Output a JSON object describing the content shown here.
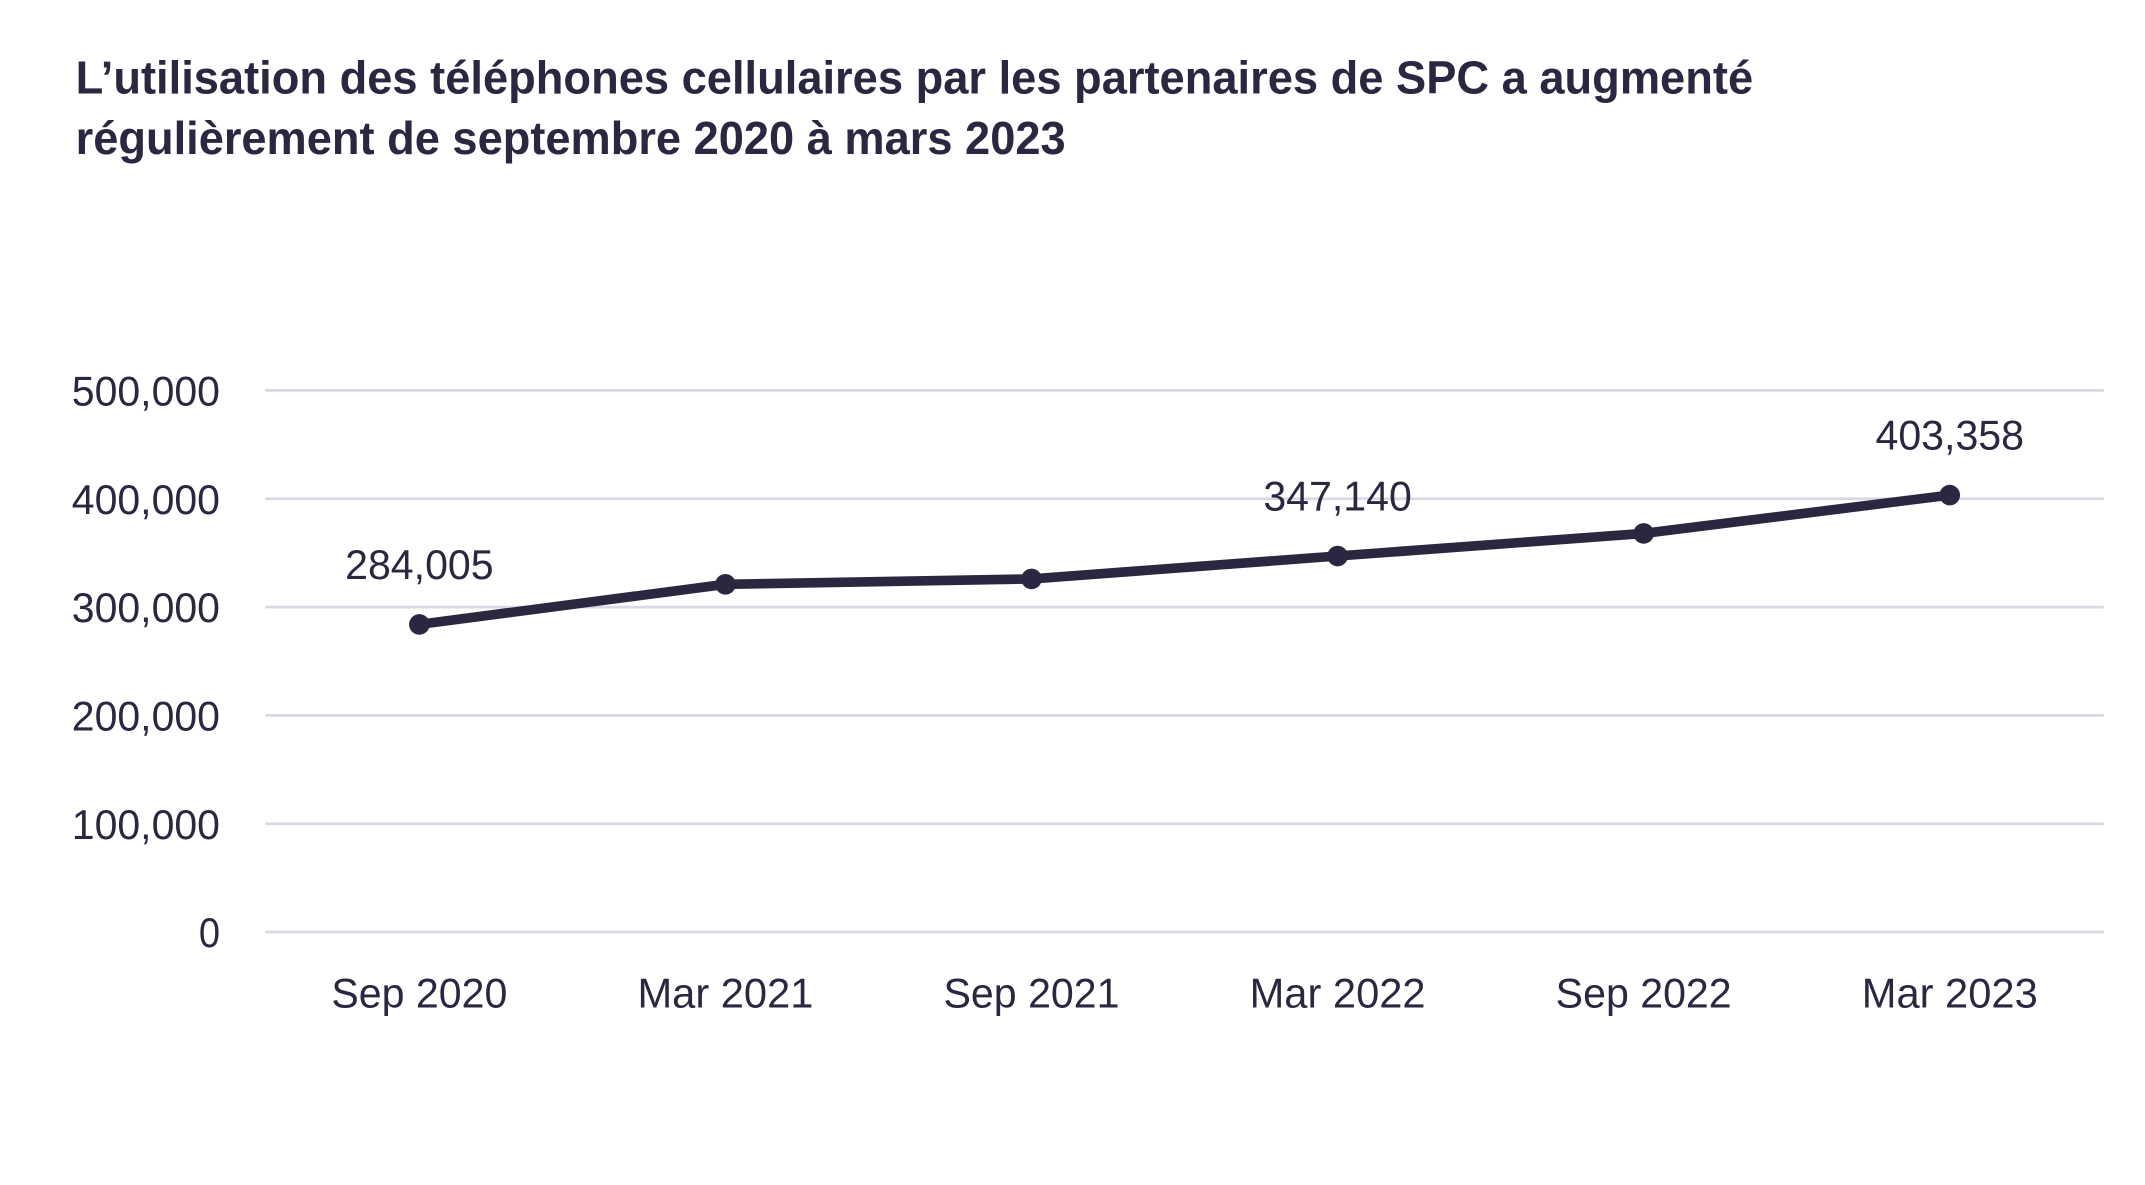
{
  "chart_data": {
    "type": "line",
    "title": "L’utilisation des téléphones cellulaires par les partenaires de SPC a augmenté régulièrement de septembre 2020 à mars 2023",
    "title_lines": [
      "L’utilisation des téléphones cellulaires par les partenaires de SPC a augmenté",
      "régulièrement de septembre 2020 à mars 2023"
    ],
    "xlabel": "",
    "ylabel": "",
    "categories": [
      "Sep 2020",
      "Mar 2021",
      "Sep 2021",
      "Mar 2022",
      "Sep 2022",
      "Mar 2023"
    ],
    "values": [
      284005,
      321000,
      326000,
      347140,
      368000,
      403358
    ],
    "data_labels": [
      {
        "index": 0,
        "text": "284,005"
      },
      {
        "index": 3,
        "text": "347,140"
      },
      {
        "index": 5,
        "text": "403,358"
      }
    ],
    "ylim": [
      0,
      500000
    ],
    "yticks": [
      0,
      100000,
      200000,
      300000,
      400000,
      500000
    ],
    "ytick_labels": [
      "0",
      "100,000",
      "200,000",
      "300,000",
      "400,000",
      "500,000"
    ],
    "grid": "horizontal",
    "legend": "none",
    "colors": {
      "line": "#2a2840",
      "grid": "#d9d8e3",
      "text": "#2a2840"
    }
  }
}
